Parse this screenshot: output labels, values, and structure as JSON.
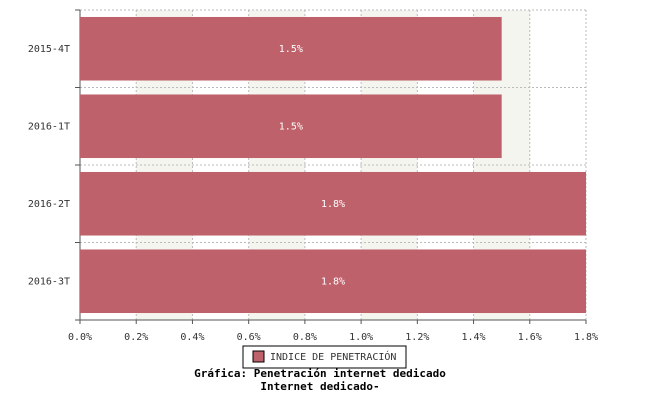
{
  "chart_data": {
    "type": "bar",
    "orientation": "horizontal",
    "title": "Gráfica: Penetración internet dedicado",
    "subtitle": "Internet dedicado-",
    "categories": [
      "2015-4T",
      "2016-1T",
      "2016-2T",
      "2016-3T"
    ],
    "series": [
      {
        "name": "INDICE DE PENETRACIÓN",
        "color": "#bf616a",
        "values": [
          1.5,
          1.5,
          1.8,
          1.8
        ],
        "value_labels": [
          "1.5%",
          "1.5%",
          "1.8%",
          "1.8%"
        ]
      }
    ],
    "xlim": [
      0,
      1.8
    ],
    "xticks": [
      {
        "value": 0,
        "label": "0.0%"
      },
      {
        "value": 0.2,
        "label": "0.2%"
      },
      {
        "value": 0.4,
        "label": "0.4%"
      },
      {
        "value": 0.6,
        "label": "0.6%"
      },
      {
        "value": 0.8,
        "label": "0.8%"
      },
      {
        "value": 1.0,
        "label": "1.0%"
      },
      {
        "value": 1.2,
        "label": "1.2%"
      },
      {
        "value": 1.4,
        "label": "1.4%"
      },
      {
        "value": 1.6,
        "label": "1.6%"
      },
      {
        "value": 1.8,
        "label": "1.8%"
      }
    ],
    "grid": true,
    "legend": "bottom"
  }
}
